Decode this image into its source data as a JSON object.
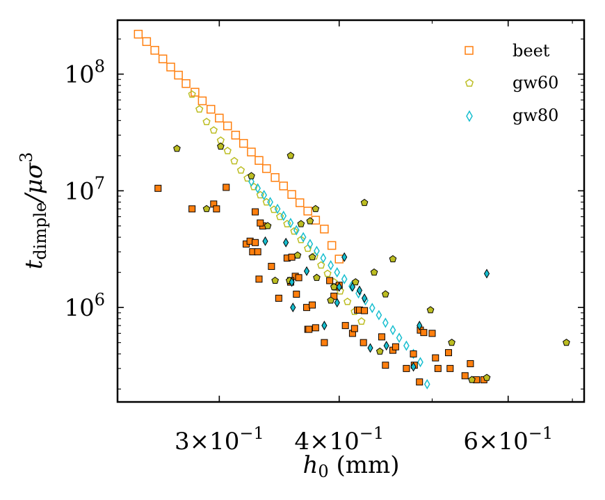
{
  "chart_data": {
    "type": "scatter",
    "xscale": "log",
    "yscale": "log",
    "xlim": [
      0.235,
      0.72
    ],
    "ylim": [
      155000,
      290000000
    ],
    "xlabel_main": "h",
    "xlabel_sub": "0",
    "xlabel_unit": " (mm)",
    "ylabel_main": "t",
    "ylabel_sub": "dimple",
    "ylabel_rest": "/μσ",
    "ylabel_sup": "3",
    "xticks_major": [
      {
        "value": 0.3,
        "mantissa": "3×10",
        "exp": "−1"
      },
      {
        "value": 0.4,
        "mantissa": "4×10",
        "exp": "−1"
      },
      {
        "value": 0.6,
        "mantissa": "6×10",
        "exp": "−1"
      }
    ],
    "yticks_major": [
      {
        "value": 1000000,
        "base": "10",
        "exp": "6"
      },
      {
        "value": 10000000,
        "base": "10",
        "exp": "7"
      },
      {
        "value": 100000000,
        "base": "10",
        "exp": "8"
      }
    ],
    "legend_position": "top-right",
    "series": [
      {
        "name": "beet",
        "marker": "square",
        "color": "#ff7f0e",
        "filled": false,
        "x": [
          0.247,
          0.252,
          0.257,
          0.262,
          0.267,
          0.272,
          0.277,
          0.283,
          0.288,
          0.294,
          0.3,
          0.306,
          0.312,
          0.318,
          0.324,
          0.33,
          0.336,
          0.343,
          0.35,
          0.357,
          0.364,
          0.371,
          0.378,
          0.386,
          0.393,
          0.4
        ],
        "y": [
          220000000,
          190000000,
          160000000,
          135000000,
          115000000,
          98000000,
          83000000,
          70000000,
          59000000,
          50000000,
          42000000,
          36000000,
          30000000,
          25500000,
          21500000,
          18200000,
          15500000,
          13000000,
          11000000,
          9300000,
          7900000,
          6700000,
          5600000,
          4700000,
          3400000,
          2600000
        ]
      },
      {
        "name": "gw60",
        "marker": "pentagon",
        "color": "#bcbd22",
        "filled": false,
        "x": [
          0.281,
          0.286,
          0.291,
          0.296,
          0.301,
          0.306,
          0.311,
          0.316,
          0.321,
          0.326,
          0.331,
          0.336,
          0.342,
          0.347,
          0.353,
          0.359,
          0.365,
          0.371,
          0.377,
          0.383,
          0.389,
          0.395,
          0.401,
          0.408,
          0.415,
          0.422
        ],
        "y": [
          67000000,
          50000000,
          39000000,
          33000000,
          27000000,
          22000000,
          18000000,
          15000000,
          12800000,
          10800000,
          9200000,
          8000000,
          6900000,
          6000000,
          5200000,
          4500000,
          3800000,
          3200000,
          2750000,
          2300000,
          1950000,
          1650000,
          1380000,
          1120000,
          920000,
          760000
        ]
      },
      {
        "name": "gw80",
        "marker": "diamond",
        "color": "#17becf",
        "filled": false,
        "x": [
          0.324,
          0.329,
          0.334,
          0.339,
          0.345,
          0.35,
          0.356,
          0.361,
          0.367,
          0.373,
          0.379,
          0.385,
          0.392,
          0.398,
          0.405,
          0.412,
          0.419,
          0.426,
          0.433,
          0.44,
          0.447,
          0.455,
          0.462,
          0.47,
          0.478,
          0.486,
          0.494
        ],
        "y": [
          12000000,
          10500000,
          9200000,
          8000000,
          7000000,
          6100000,
          5300000,
          4600000,
          4000000,
          3500000,
          3050000,
          2650000,
          2300000,
          2000000,
          1750000,
          1520000,
          1320000,
          1150000,
          990000,
          860000,
          740000,
          640000,
          550000,
          470000,
          400000,
          340000,
          220000
        ]
      },
      {
        "name": "",
        "marker": "square",
        "color": "#ff7f0e",
        "filled": true,
        "edge": "#000000",
        "x": [
          0.259,
          0.281,
          0.296,
          0.298,
          0.305,
          0.327,
          0.32,
          0.323,
          0.325,
          0.327,
          0.329,
          0.33,
          0.333,
          0.34,
          0.346,
          0.331,
          0.353,
          0.356,
          0.357,
          0.36,
          0.363,
          0.361,
          0.356,
          0.37,
          0.375,
          0.371,
          0.372,
          0.378,
          0.386,
          0.391,
          0.395,
          0.397,
          0.4,
          0.413,
          0.406,
          0.415,
          0.418,
          0.424,
          0.42,
          0.425,
          0.443,
          0.447,
          0.455,
          0.458,
          0.47,
          0.478,
          0.479,
          0.486,
          0.49,
          0.485,
          0.5,
          0.504,
          0.507,
          0.52,
          0.522,
          0.548,
          0.566,
          0.541,
          0.556
        ],
        "y": [
          10500000,
          7000000,
          7700000,
          7000000,
          10700000,
          6600000,
          3500000,
          3700000,
          3000000,
          3600000,
          3000000,
          1750000,
          5000000,
          2250000,
          1200000,
          5300000,
          2650000,
          1650000,
          2700000,
          1850000,
          1800000,
          1300000,
          1700000,
          1000000,
          1050000,
          650000,
          650000,
          670000,
          500000,
          1700000,
          1250000,
          1500000,
          1550000,
          600000,
          700000,
          660000,
          950000,
          500000,
          950000,
          940000,
          560000,
          320000,
          430000,
          460000,
          300000,
          400000,
          320000,
          640000,
          610000,
          230000,
          600000,
          370000,
          300000,
          410000,
          300000,
          330000,
          240000,
          260000,
          240000
        ]
      },
      {
        "name": "",
        "marker": "pentagon",
        "color": "#bcbd22",
        "filled": true,
        "edge": "#000000",
        "x": [
          0.271,
          0.291,
          0.301,
          0.324,
          0.337,
          0.355,
          0.365,
          0.362,
          0.373,
          0.379,
          0.375,
          0.378,
          0.392,
          0.395,
          0.416,
          0.425,
          0.435,
          0.447,
          0.441,
          0.455,
          0.498,
          0.524,
          0.55,
          0.57,
          0.69,
          0.356,
          0.343
        ],
        "y": [
          23000000,
          7000000,
          24000000,
          13400000,
          5000000,
          1700000,
          5200000,
          2800000,
          5500000,
          1800000,
          2700000,
          7000000,
          1150000,
          1500000,
          1650000,
          7900000,
          2000000,
          1300000,
          420000,
          2600000,
          950000,
          500000,
          240000,
          250000,
          500000,
          20000000,
          1700000
        ]
      },
      {
        "name": "",
        "marker": "diamond",
        "color": "#17becf",
        "filled": true,
        "edge": "#000000",
        "x": [
          0.335,
          0.352,
          0.358,
          0.357,
          0.37,
          0.386,
          0.398,
          0.4,
          0.405,
          0.413,
          0.425,
          0.431,
          0.42,
          0.448,
          0.478,
          0.485,
          0.57
        ],
        "y": [
          3700000,
          3600000,
          1000000,
          1650000,
          2050000,
          700000,
          1100000,
          1500000,
          2700000,
          1500000,
          1200000,
          450000,
          1400000,
          470000,
          310000,
          700000,
          1950000
        ]
      }
    ]
  }
}
